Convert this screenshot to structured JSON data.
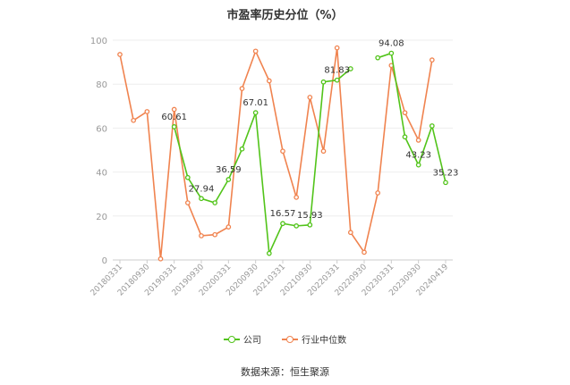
{
  "chart_data": {
    "type": "line",
    "title": "市盈率历史分位（%）",
    "ylim": [
      0,
      100
    ],
    "yticks": [
      0,
      20,
      40,
      60,
      80,
      100
    ],
    "grid": true,
    "legend_position": "bottom",
    "x_tick_labels": [
      "20180331",
      "20180930",
      "20190331",
      "20190930",
      "20200331",
      "20200930",
      "20210331",
      "20210930",
      "20220331",
      "20220930",
      "20230331",
      "20230930",
      "20240419"
    ],
    "series": [
      {
        "name": "公司",
        "color": "#52c41a",
        "values": [
          null,
          null,
          null,
          null,
          60.61,
          37.5,
          27.94,
          26.0,
          36.59,
          50.5,
          67.01,
          3.0,
          16.57,
          15.5,
          15.93,
          81.0,
          81.83,
          87.0,
          null,
          92.0,
          94.08,
          56.0,
          43.23,
          61.0,
          35.23
        ]
      },
      {
        "name": "行业中位数",
        "color": "#f0834f",
        "values": [
          93.5,
          63.5,
          67.5,
          0.5,
          68.5,
          26.0,
          11.0,
          11.5,
          15.0,
          78.0,
          95.0,
          81.5,
          49.5,
          28.5,
          74.0,
          49.5,
          96.5,
          12.5,
          3.5,
          30.5,
          88.5,
          67.0,
          54.5,
          91.0,
          null
        ]
      }
    ],
    "data_labels": [
      {
        "series": 0,
        "index": 4,
        "text": "60.61"
      },
      {
        "series": 0,
        "index": 6,
        "text": "27.94"
      },
      {
        "series": 0,
        "index": 8,
        "text": "36.59"
      },
      {
        "series": 0,
        "index": 10,
        "text": "67.01"
      },
      {
        "series": 0,
        "index": 12,
        "text": "16.57"
      },
      {
        "series": 0,
        "index": 14,
        "text": "15.93"
      },
      {
        "series": 0,
        "index": 16,
        "text": "81.83"
      },
      {
        "series": 0,
        "index": 20,
        "text": "94.08"
      },
      {
        "series": 0,
        "index": 22,
        "text": "43.23"
      },
      {
        "series": 0,
        "index": 24,
        "text": "35.23"
      }
    ]
  },
  "legend": {
    "company_label": "公司",
    "industry_label": "行业中位数"
  },
  "source_text": "数据来源：恒生聚源"
}
